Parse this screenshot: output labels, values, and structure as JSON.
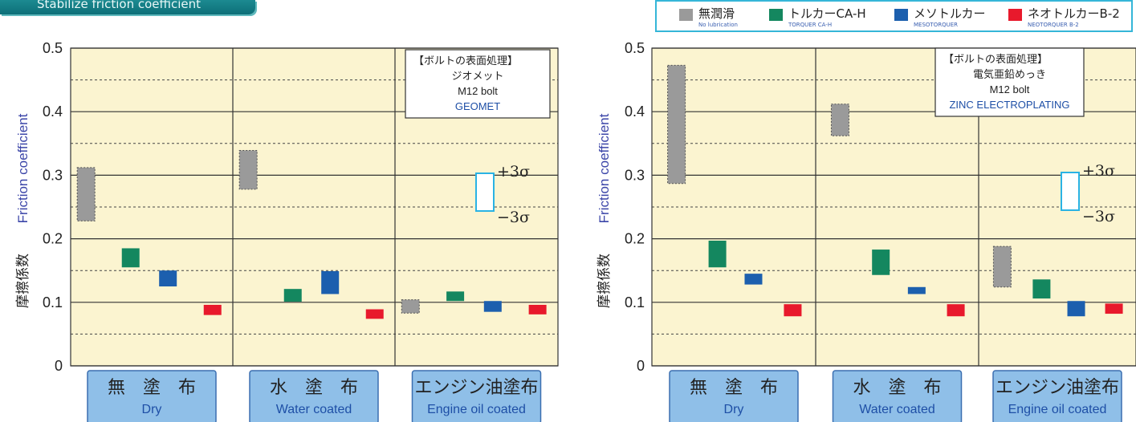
{
  "banner": {
    "text": "Stabilize friction coefficient"
  },
  "legend": [
    {
      "jp": "無潤滑",
      "en": "No lubrication",
      "color": "#9a9a9a"
    },
    {
      "jp": "トルカーCA-H",
      "en": "TORQUER CA-H",
      "color": "#14875f"
    },
    {
      "jp": "メソトルカー",
      "en": "MESOTORQUER",
      "color": "#1c5fae"
    },
    {
      "jp": "ネオトルカーB-2",
      "en": "NEOTORQUER B-2",
      "color": "#e8192c"
    }
  ],
  "sigma": {
    "upper": "+3σ",
    "lower": "−3σ"
  },
  "chart_data": [
    {
      "type": "bar",
      "ylabel_jp": "摩擦係数",
      "ylabel_en": "Friction coefficient",
      "ylim": [
        0,
        0.5
      ],
      "yticks": [
        "0",
        "0.1",
        "0.2",
        "0.3",
        "0.4",
        "0.5"
      ],
      "categories": [
        {
          "jp": "無　塗　布",
          "en": "Dry"
        },
        {
          "jp": "水　塗　布",
          "en": "Water coated"
        },
        {
          "jp": "エンジン油塗布",
          "en": "Engine oil coated"
        }
      ],
      "note": [
        "【ボルトの表面処理】",
        "ジオメット",
        "M12 bolt",
        "GEOMET"
      ],
      "series": [
        {
          "name": "無潤滑",
          "ranges": [
            [
              0.228,
              0.312
            ],
            [
              0.278,
              0.339
            ],
            [
              0.083,
              0.104
            ]
          ]
        },
        {
          "name": "トルカーCA-H",
          "ranges": [
            [
              0.155,
              0.185
            ],
            [
              0.101,
              0.121
            ],
            [
              0.102,
              0.117
            ]
          ]
        },
        {
          "name": "メソトルカー",
          "ranges": [
            [
              0.125,
              0.15
            ],
            [
              0.113,
              0.149
            ],
            [
              0.085,
              0.102
            ]
          ]
        },
        {
          "name": "ネオトルカーB-2",
          "ranges": [
            [
              0.08,
              0.096
            ],
            [
              0.074,
              0.089
            ],
            [
              0.081,
              0.096
            ]
          ]
        }
      ]
    },
    {
      "type": "bar",
      "ylabel_jp": "摩擦係数",
      "ylabel_en": "Friction coefficient",
      "ylim": [
        0,
        0.5
      ],
      "yticks": [
        "0",
        "0.1",
        "0.2",
        "0.3",
        "0.4",
        "0.5"
      ],
      "categories": [
        {
          "jp": "無　塗　布",
          "en": "Dry"
        },
        {
          "jp": "水　塗　布",
          "en": "Water coated"
        },
        {
          "jp": "エンジン油塗布",
          "en": "Engine oil coated"
        }
      ],
      "note": [
        "【ボルトの表面処理】",
        "電気亜鉛めっき",
        "M12 bolt",
        "ZINC ELECTROPLATING"
      ],
      "series": [
        {
          "name": "無潤滑",
          "ranges": [
            [
              0.287,
              0.473
            ],
            [
              0.362,
              0.412
            ],
            [
              0.124,
              0.188
            ]
          ]
        },
        {
          "name": "トルカーCA-H",
          "ranges": [
            [
              0.155,
              0.197
            ],
            [
              0.143,
              0.183
            ],
            [
              0.106,
              0.136
            ]
          ]
        },
        {
          "name": "メソトルカー",
          "ranges": [
            [
              0.128,
              0.145
            ],
            [
              0.113,
              0.124
            ],
            [
              0.078,
              0.102
            ]
          ]
        },
        {
          "name": "ネオトルカーB-2",
          "ranges": [
            [
              0.078,
              0.097
            ],
            [
              0.078,
              0.097
            ],
            [
              0.082,
              0.098
            ]
          ]
        }
      ]
    }
  ]
}
